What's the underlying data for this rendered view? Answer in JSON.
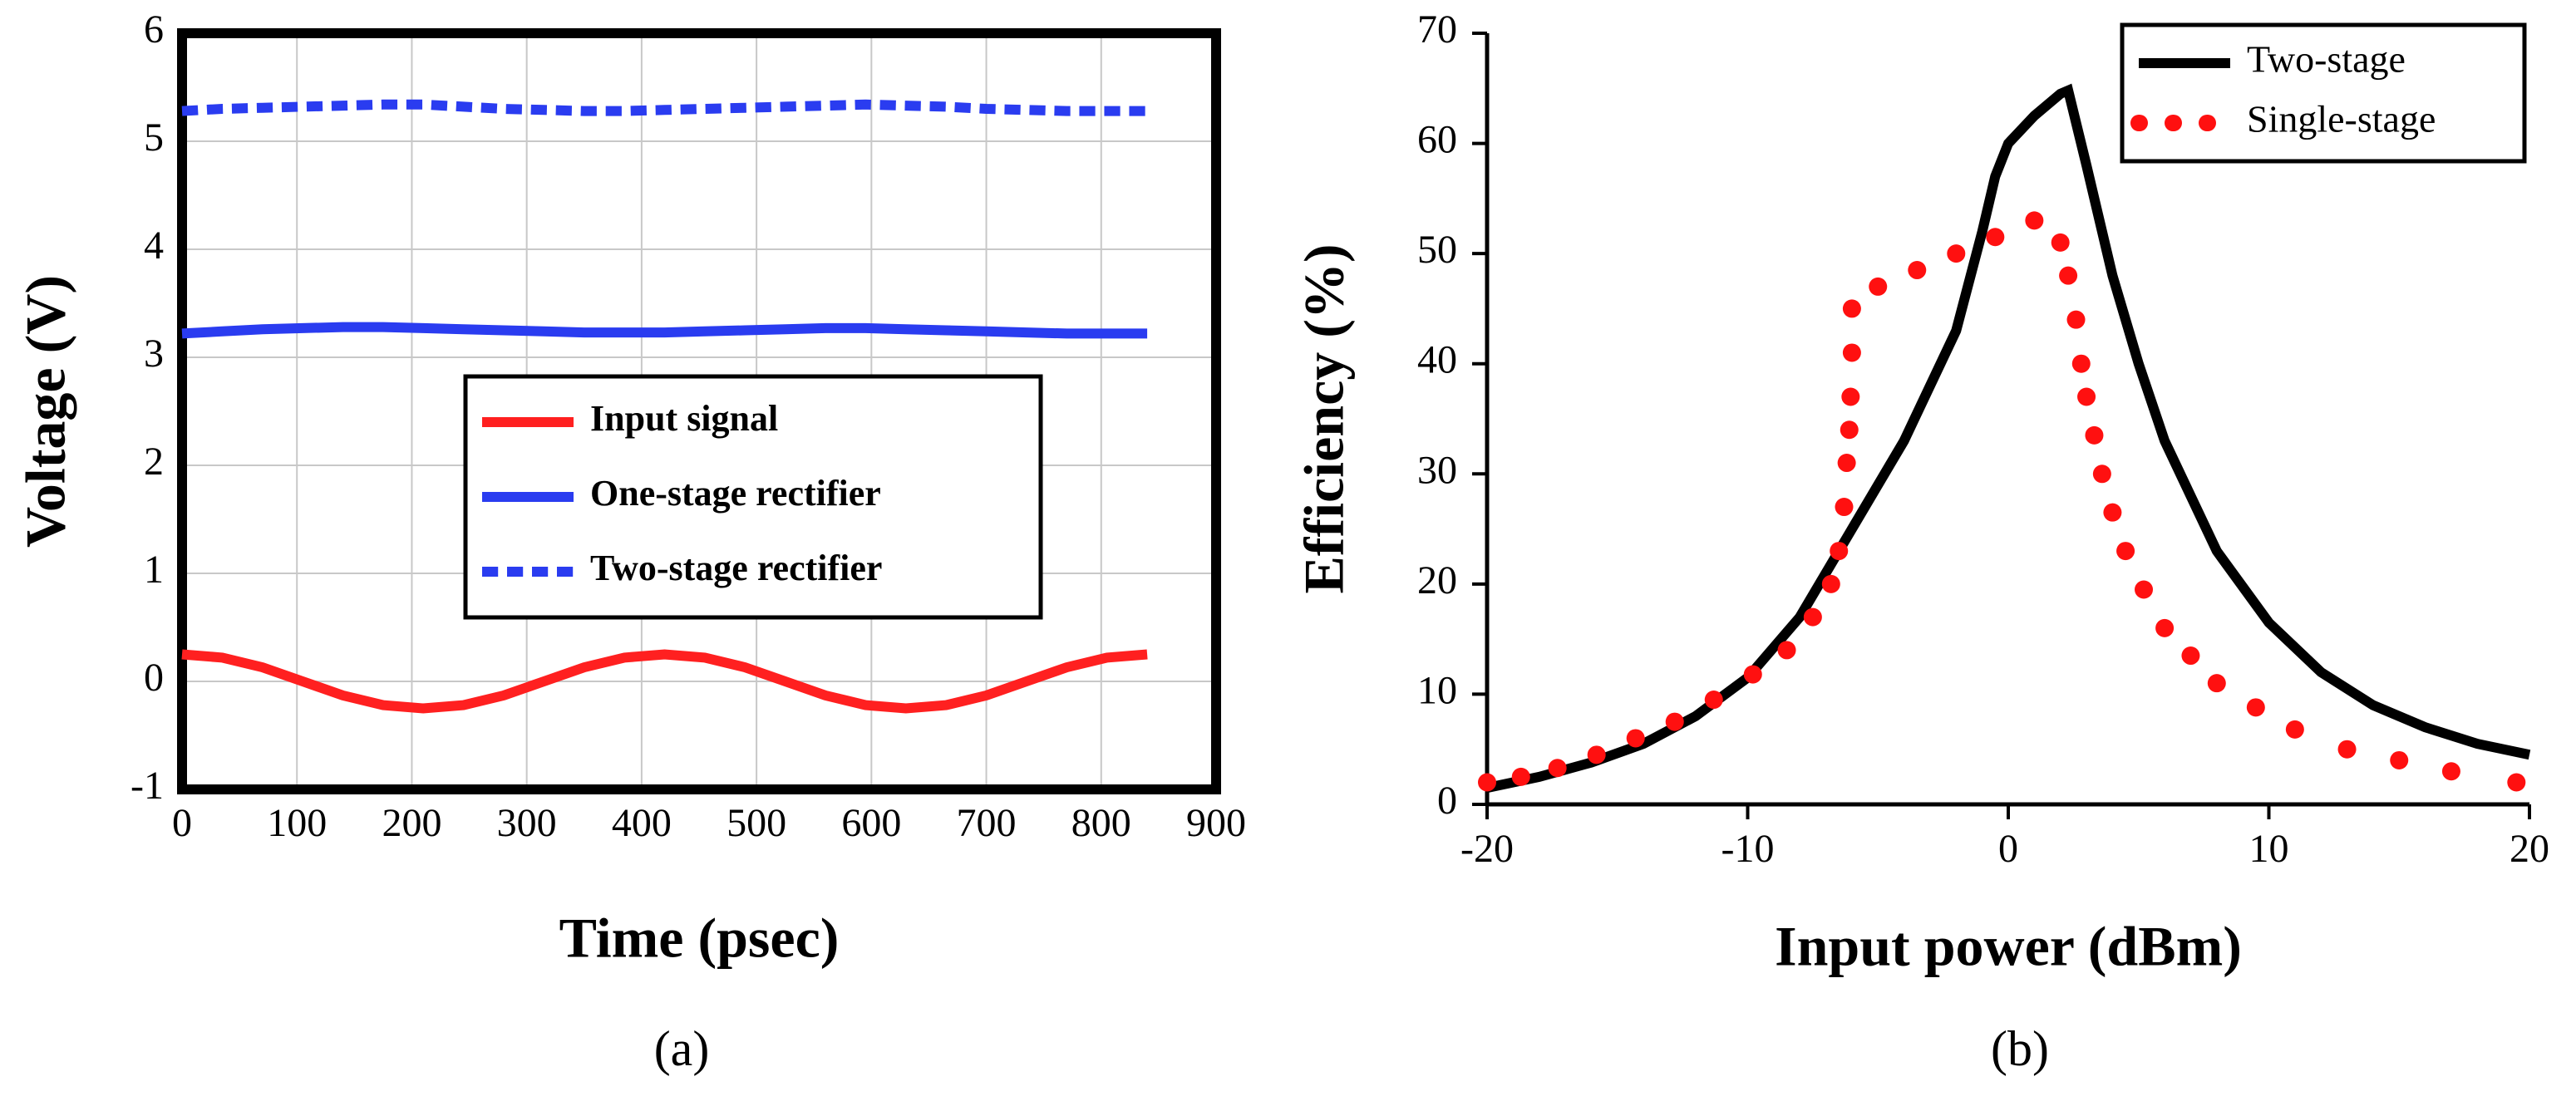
{
  "chart_data": [
    {
      "type": "line",
      "caption": "(a)",
      "xlabel": "Time (psec)",
      "ylabel": "Voltage (V)",
      "x": [
        0,
        35,
        70,
        105,
        140,
        175,
        210,
        245,
        280,
        315,
        350,
        385,
        420,
        455,
        490,
        525,
        560,
        595,
        630,
        665,
        700,
        735,
        770,
        805,
        840
      ],
      "series": [
        {
          "name": "Input signal",
          "color": "#ff2020",
          "line_style": "solid",
          "values": [
            0.25,
            0.22,
            0.13,
            0,
            -0.13,
            -0.22,
            -0.25,
            -0.22,
            -0.13,
            0,
            0.13,
            0.22,
            0.25,
            0.22,
            0.13,
            0,
            -0.13,
            -0.22,
            -0.25,
            -0.22,
            -0.13,
            0,
            0.13,
            0.22,
            0.25
          ]
        },
        {
          "name": "One-stage rectifier",
          "color": "#2a3cf0",
          "line_style": "solid",
          "values": [
            3.22,
            3.24,
            3.26,
            3.27,
            3.28,
            3.28,
            3.27,
            3.26,
            3.25,
            3.24,
            3.23,
            3.23,
            3.23,
            3.24,
            3.25,
            3.26,
            3.27,
            3.27,
            3.26,
            3.25,
            3.24,
            3.23,
            3.22,
            3.22,
            3.22
          ]
        },
        {
          "name": "Two-stage rectifier",
          "color": "#2a3cf0",
          "line_style": "dashed",
          "values": [
            5.28,
            5.3,
            5.31,
            5.32,
            5.33,
            5.34,
            5.34,
            5.32,
            5.3,
            5.29,
            5.28,
            5.28,
            5.29,
            5.3,
            5.31,
            5.32,
            5.33,
            5.34,
            5.33,
            5.32,
            5.3,
            5.29,
            5.28,
            5.28,
            5.28
          ]
        }
      ],
      "xlim": [
        0,
        900
      ],
      "xticks": [
        0,
        100,
        200,
        300,
        400,
        500,
        600,
        700,
        800,
        900
      ],
      "ylim": [
        -1,
        6
      ],
      "yticks": [
        -1,
        0,
        1,
        2,
        3,
        4,
        5,
        6
      ],
      "grid": true,
      "legend": "center right"
    },
    {
      "type": "line",
      "caption": "(b)",
      "xlabel": "Input power (dBm)",
      "ylabel": "Efficiency (%)",
      "series": [
        {
          "name": "Two-stage",
          "color": "#000000",
          "line_style": "solid",
          "x": [
            -20,
            -18,
            -16,
            -14,
            -12,
            -10,
            -8,
            -6,
            -4,
            -2,
            -1,
            -0.5,
            0,
            1,
            2,
            2.3,
            3,
            4,
            5,
            6,
            8,
            10,
            12,
            14,
            16,
            18,
            20
          ],
          "values": [
            1.5,
            2.5,
            3.8,
            5.5,
            8,
            11.5,
            17,
            25,
            33,
            43,
            52,
            57,
            60,
            62.5,
            64.5,
            64.8,
            58,
            48,
            40,
            33,
            23,
            16.5,
            12,
            9,
            7,
            5.5,
            4.5
          ]
        },
        {
          "name": "Single-stage",
          "color": "#ff1010",
          "line_style": "dotted",
          "x": [
            -20,
            -18.7,
            -17.3,
            -15.8,
            -14.3,
            -12.8,
            -11.3,
            -9.8,
            -8.5,
            -7.5,
            -6.8,
            -6.5,
            -6.3,
            -6.2,
            -6.1,
            -6.05,
            -6,
            -6,
            -5,
            -3.5,
            -2,
            -0.5,
            1,
            2,
            2.3,
            2.6,
            2.8,
            3,
            3.3,
            3.6,
            4,
            4.5,
            5.2,
            6,
            7,
            8,
            9.5,
            11,
            13,
            15,
            17,
            19.5
          ],
          "values": [
            2,
            2.5,
            3.3,
            4.5,
            6,
            7.5,
            9.5,
            11.8,
            14,
            17,
            20,
            23,
            27,
            31,
            34,
            37,
            41,
            45,
            47,
            48.5,
            50,
            51.5,
            53,
            51,
            48,
            44,
            40,
            37,
            33.5,
            30,
            26.5,
            23,
            19.5,
            16,
            13.5,
            11,
            8.8,
            6.8,
            5,
            4,
            3,
            2
          ]
        }
      ],
      "xlim": [
        -20,
        20
      ],
      "xticks": [
        -20,
        -10,
        0,
        10,
        20
      ],
      "ylim": [
        0,
        70
      ],
      "yticks": [
        0,
        10,
        20,
        30,
        40,
        50,
        60,
        70
      ],
      "grid": false,
      "legend": "upper right"
    }
  ]
}
